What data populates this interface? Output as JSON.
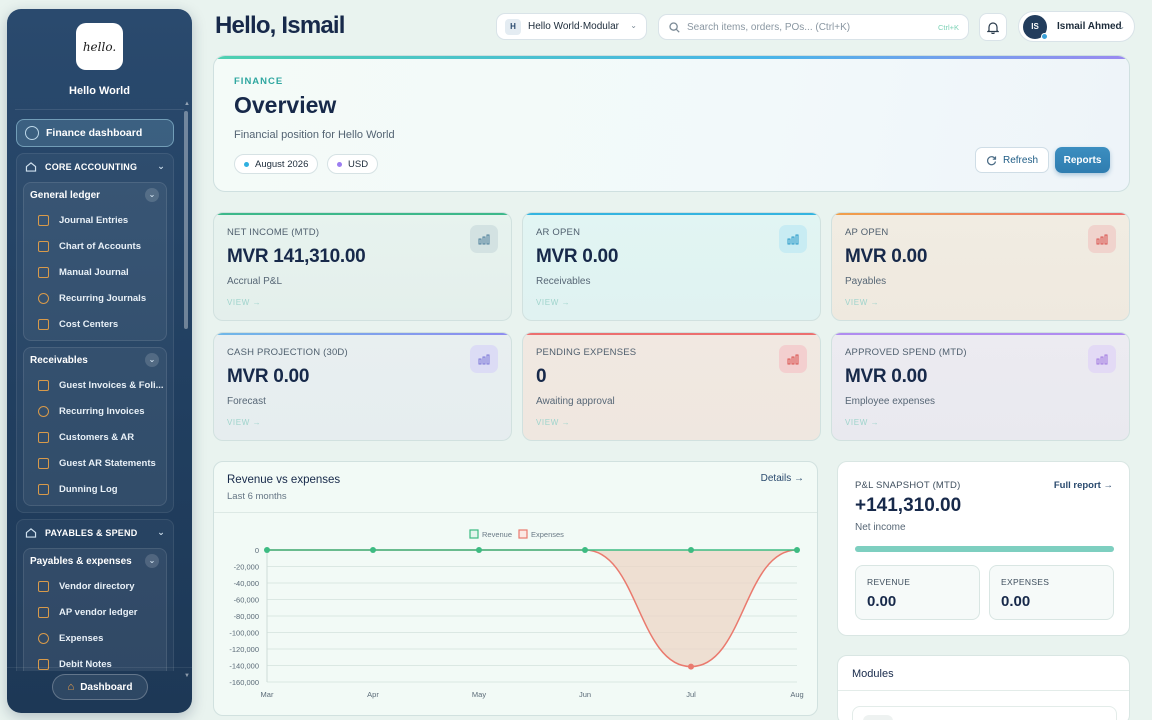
{
  "sidebar": {
    "logo_text": "hello.",
    "org_name": "Hello World",
    "active_item": "Finance dashboard",
    "groups": [
      {
        "label": "CORE ACCOUNTING",
        "subgroups": [
          {
            "label": "General ledger",
            "items": [
              "Journal Entries",
              "Chart of Accounts",
              "Manual Journal",
              "Recurring Journals",
              "Cost Centers"
            ]
          },
          {
            "label": "Receivables",
            "items": [
              "Guest Invoices & Foli...",
              "Recurring Invoices",
              "Customers & AR",
              "Guest AR Statements",
              "Dunning Log"
            ]
          }
        ]
      },
      {
        "label": "PAYABLES & SPEND",
        "subgroups": [
          {
            "label": "Payables & expenses",
            "items": [
              "Vendor directory",
              "AP vendor ledger",
              "Expenses",
              "Debit Notes"
            ]
          }
        ]
      }
    ],
    "bottom_button": "Dashboard"
  },
  "header": {
    "greeting": "Hello, Ismail",
    "workspace_badge": "H",
    "workspace": "Hello World·Modular",
    "search_placeholder": "Search items, orders, POs... (Ctrl+K)",
    "search_shortcut": "Ctrl+K",
    "user_initials": "IS",
    "user_name": "Ismail Ahmed"
  },
  "overview": {
    "kicker": "FINANCE",
    "title": "Overview",
    "subtitle": "Financial position for Hello World",
    "period": "August 2026",
    "currency": "USD",
    "refresh_label": "Refresh",
    "reports_label": "Reports"
  },
  "kpis": [
    {
      "label": "NET INCOME (MTD)",
      "value": "MVR 141,310.00",
      "desc": "Accrual P&L",
      "link": "VIEW →",
      "accent": "#3db88a"
    },
    {
      "label": "AR OPEN",
      "value": "MVR 0.00",
      "desc": "Receivables",
      "link": "VIEW →",
      "accent": "#34b4e0"
    },
    {
      "label": "AP OPEN",
      "value": "MVR 0.00",
      "desc": "Payables",
      "link": "VIEW →",
      "accent": "#f08a4a"
    },
    {
      "label": "CASH PROJECTION (30D)",
      "value": "MVR 0.00",
      "desc": "Forecast",
      "link": "VIEW →",
      "accent": "#8f8cf0"
    },
    {
      "label": "PENDING EXPENSES",
      "value": "0",
      "desc": "Awaiting approval",
      "link": "VIEW →",
      "accent": "#ec6f6f"
    },
    {
      "label": "APPROVED SPEND (MTD)",
      "value": "MVR 0.00",
      "desc": "Employee expenses",
      "link": "VIEW →",
      "accent": "#b08cf0"
    }
  ],
  "revenue_panel": {
    "title": "Revenue vs expenses",
    "subtitle": "Last 6 months",
    "details_link": "Details →"
  },
  "chart_data": {
    "type": "area",
    "categories": [
      "Mar",
      "Apr",
      "May",
      "Jun",
      "Jul",
      "Aug"
    ],
    "series": [
      {
        "name": "Revenue",
        "values": [
          0,
          0,
          0,
          0,
          0,
          0
        ],
        "color": "#3dbb82"
      },
      {
        "name": "Expenses",
        "values": [
          0,
          0,
          0,
          0,
          -141310,
          0
        ],
        "color": "#ea7a6e"
      }
    ],
    "ylim": [
      -160000,
      0
    ],
    "yticks": [
      "0",
      "-20,000",
      "-40,000",
      "-60,000",
      "-80,000",
      "-100,000",
      "-120,000",
      "-140,000",
      "-160,000"
    ],
    "ytick_values": [
      0,
      -20000,
      -40000,
      -60000,
      -80000,
      -100000,
      -120000,
      -140000,
      -160000
    ],
    "legend_position": "top-center",
    "grid": "horizontal"
  },
  "pl_snapshot": {
    "label": "P&L SNAPSHOT (MTD)",
    "link": "Full report →",
    "value": "+141,310.00",
    "sub": "Net income",
    "progress": 1.0,
    "revenue_label": "REVENUE",
    "revenue_value": "0.00",
    "expenses_label": "EXPENSES",
    "expenses_value": "0.00"
  },
  "modules": {
    "title": "Modules"
  }
}
